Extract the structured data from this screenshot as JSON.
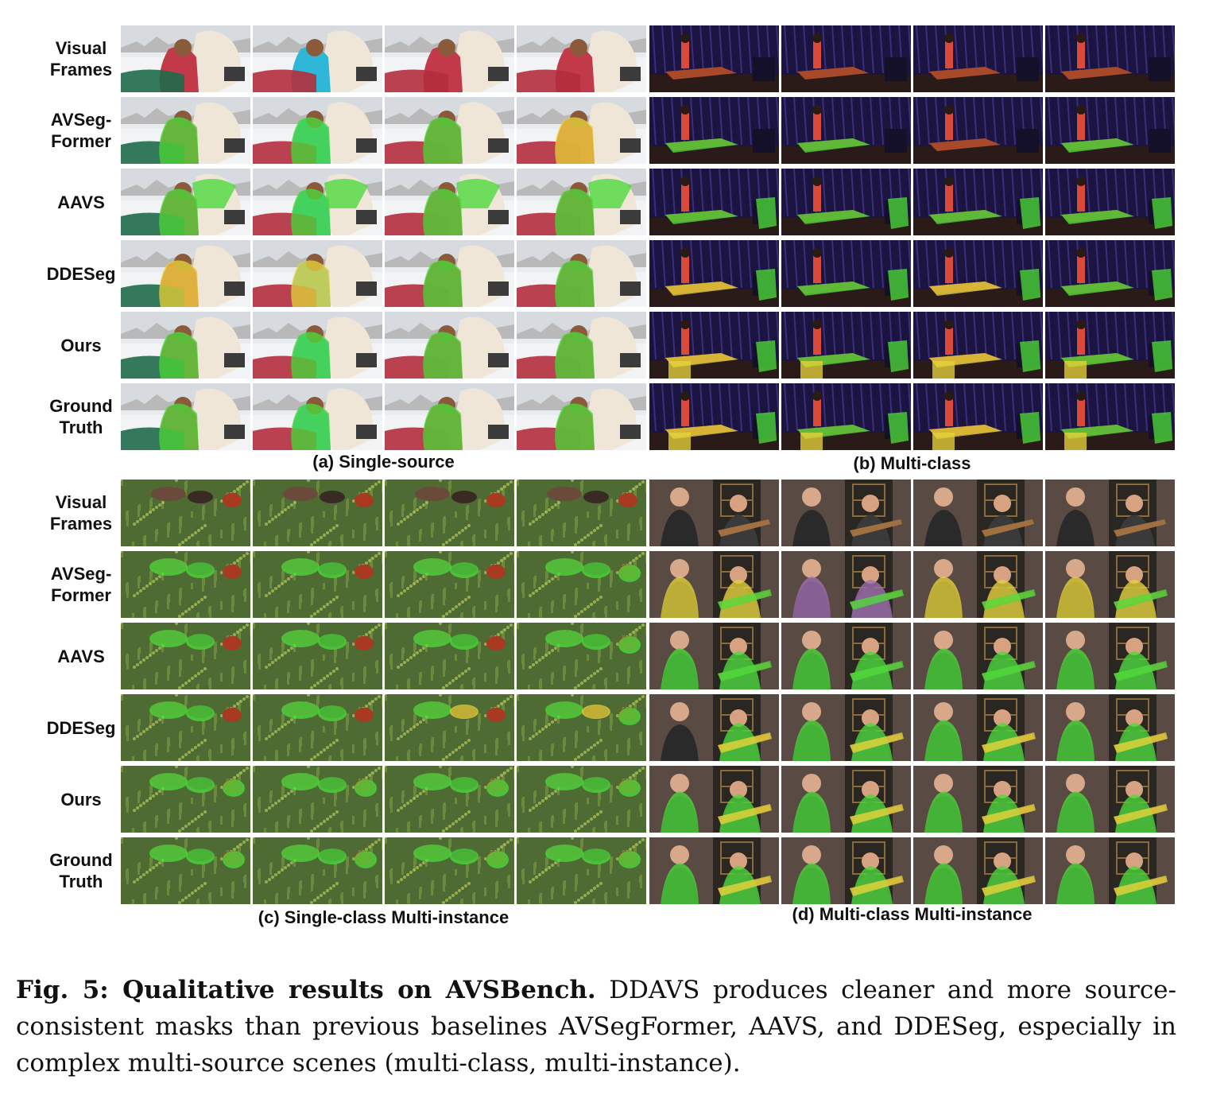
{
  "row_labels": [
    "Visual\nFrames",
    "AVSeg-\nFormer",
    "AAVS",
    "DDESeg",
    "Ours",
    "Ground\nTruth"
  ],
  "panels": [
    {
      "id": "a",
      "caption": "(a) Single-source",
      "scene": "horse"
    },
    {
      "id": "b",
      "caption": "(b) Multi-class",
      "scene": "stage"
    },
    {
      "id": "c",
      "caption": "(c) Single-class Multi-instance",
      "scene": "grass"
    },
    {
      "id": "d",
      "caption": "(d) Multi-class Multi-instance",
      "scene": "band"
    }
  ],
  "caption": {
    "lead": "Fig. 5: Qualitative results on AVSBench.",
    "body": " DDAVS produces cleaner and more source-consistent masks than previous baselines AVSegFormer, AAVS, and DDESeg, especially in complex multi-source scenes (multi-class, multi-instance)."
  },
  "colors": {
    "mask_green": "#4cd93a",
    "mask_yellow": "#e6d23a",
    "mask_purple": "#a070b0"
  }
}
